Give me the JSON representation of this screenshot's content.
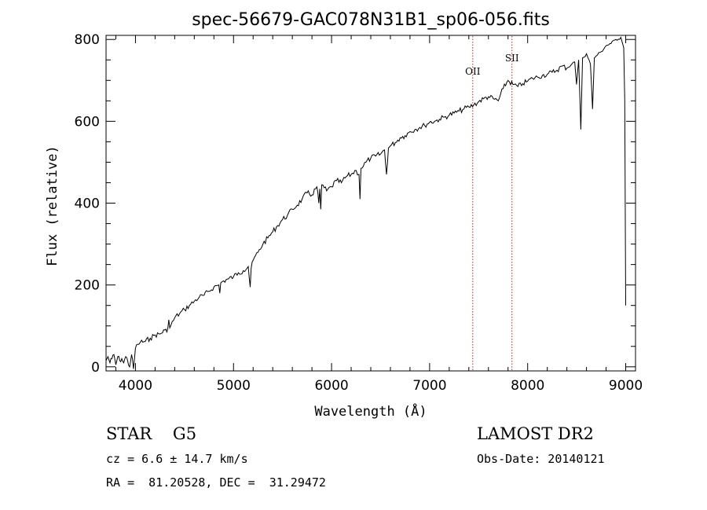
{
  "chart_data": {
    "type": "line",
    "title": "spec-56679-GAC078N31B1_sp06-056.fits",
    "xlabel": "Wavelength (Å)",
    "ylabel": "Flux (relative)",
    "xlim": [
      3700,
      9100
    ],
    "ylim": [
      -10,
      810
    ],
    "xticks": [
      4000,
      5000,
      6000,
      7000,
      8000,
      9000
    ],
    "yticks": [
      0,
      200,
      400,
      600,
      800
    ],
    "grid": false,
    "series": [
      {
        "color": "#000000",
        "x": [
          3700,
          3720,
          3740,
          3760,
          3780,
          3800,
          3820,
          3840,
          3860,
          3880,
          3900,
          3920,
          3940,
          3960,
          3980,
          4000,
          4020,
          4050,
          4100,
          4150,
          4200,
          4250,
          4300,
          4320,
          4340,
          4350,
          4400,
          4450,
          4500,
          4550,
          4600,
          4650,
          4700,
          4750,
          4800,
          4850,
          4860,
          4870,
          4900,
          4950,
          5000,
          5050,
          5100,
          5150,
          5170,
          5180,
          5200,
          5250,
          5300,
          5350,
          5400,
          5450,
          5500,
          5550,
          5600,
          5650,
          5700,
          5750,
          5800,
          5850,
          5870,
          5880,
          5890,
          5900,
          5950,
          6000,
          6050,
          6100,
          6150,
          6200,
          6250,
          6280,
          6290,
          6300,
          6350,
          6400,
          6450,
          6500,
          6540,
          6560,
          6580,
          6600,
          6650,
          6700,
          6750,
          6800,
          6850,
          6900,
          6950,
          7000,
          7050,
          7100,
          7150,
          7200,
          7250,
          7300,
          7350,
          7400,
          7450,
          7500,
          7550,
          7600,
          7650,
          7700,
          7750,
          7800,
          7850,
          7900,
          7950,
          8000,
          8050,
          8100,
          8150,
          8200,
          8250,
          8300,
          8350,
          8400,
          8450,
          8480,
          8498,
          8520,
          8542,
          8560,
          8600,
          8640,
          8662,
          8680,
          8700,
          8750,
          8800,
          8850,
          8900,
          8950,
          8980,
          8990,
          9000
        ],
        "y": [
          15,
          25,
          10,
          20,
          30,
          5,
          25,
          15,
          20,
          10,
          25,
          15,
          0,
          30,
          -5,
          45,
          55,
          60,
          62,
          70,
          78,
          80,
          90,
          85,
          115,
          95,
          120,
          130,
          140,
          150,
          160,
          170,
          175,
          185,
          195,
          200,
          180,
          205,
          210,
          215,
          220,
          230,
          235,
          245,
          195,
          240,
          260,
          280,
          300,
          315,
          330,
          345,
          360,
          370,
          385,
          395,
          410,
          425,
          420,
          440,
          400,
          435,
          385,
          445,
          430,
          440,
          455,
          450,
          465,
          470,
          480,
          470,
          410,
          485,
          500,
          510,
          515,
          520,
          530,
          470,
          535,
          540,
          548,
          560,
          565,
          575,
          580,
          585,
          590,
          598,
          600,
          605,
          610,
          615,
          620,
          625,
          630,
          635,
          640,
          648,
          655,
          660,
          655,
          650,
          680,
          700,
          690,
          685,
          692,
          698,
          705,
          708,
          712,
          715,
          720,
          725,
          735,
          730,
          740,
          745,
          690,
          750,
          580,
          755,
          765,
          740,
          630,
          755,
          760,
          770,
          785,
          790,
          800,
          805,
          780,
          650,
          150
        ]
      }
    ],
    "markers": [
      {
        "label": "OII",
        "x": 7440,
        "color": "#b22222"
      },
      {
        "label": "SII",
        "x": 7840,
        "color": "#b22222"
      }
    ]
  },
  "info": {
    "class_line": "STAR    G5",
    "survey": "LAMOST DR2",
    "redshift": "cz = 6.6 ± 14.7 km/s",
    "obs_date": "Obs-Date: 20140121",
    "coords": "RA =  81.20528, DEC =  31.29472"
  }
}
